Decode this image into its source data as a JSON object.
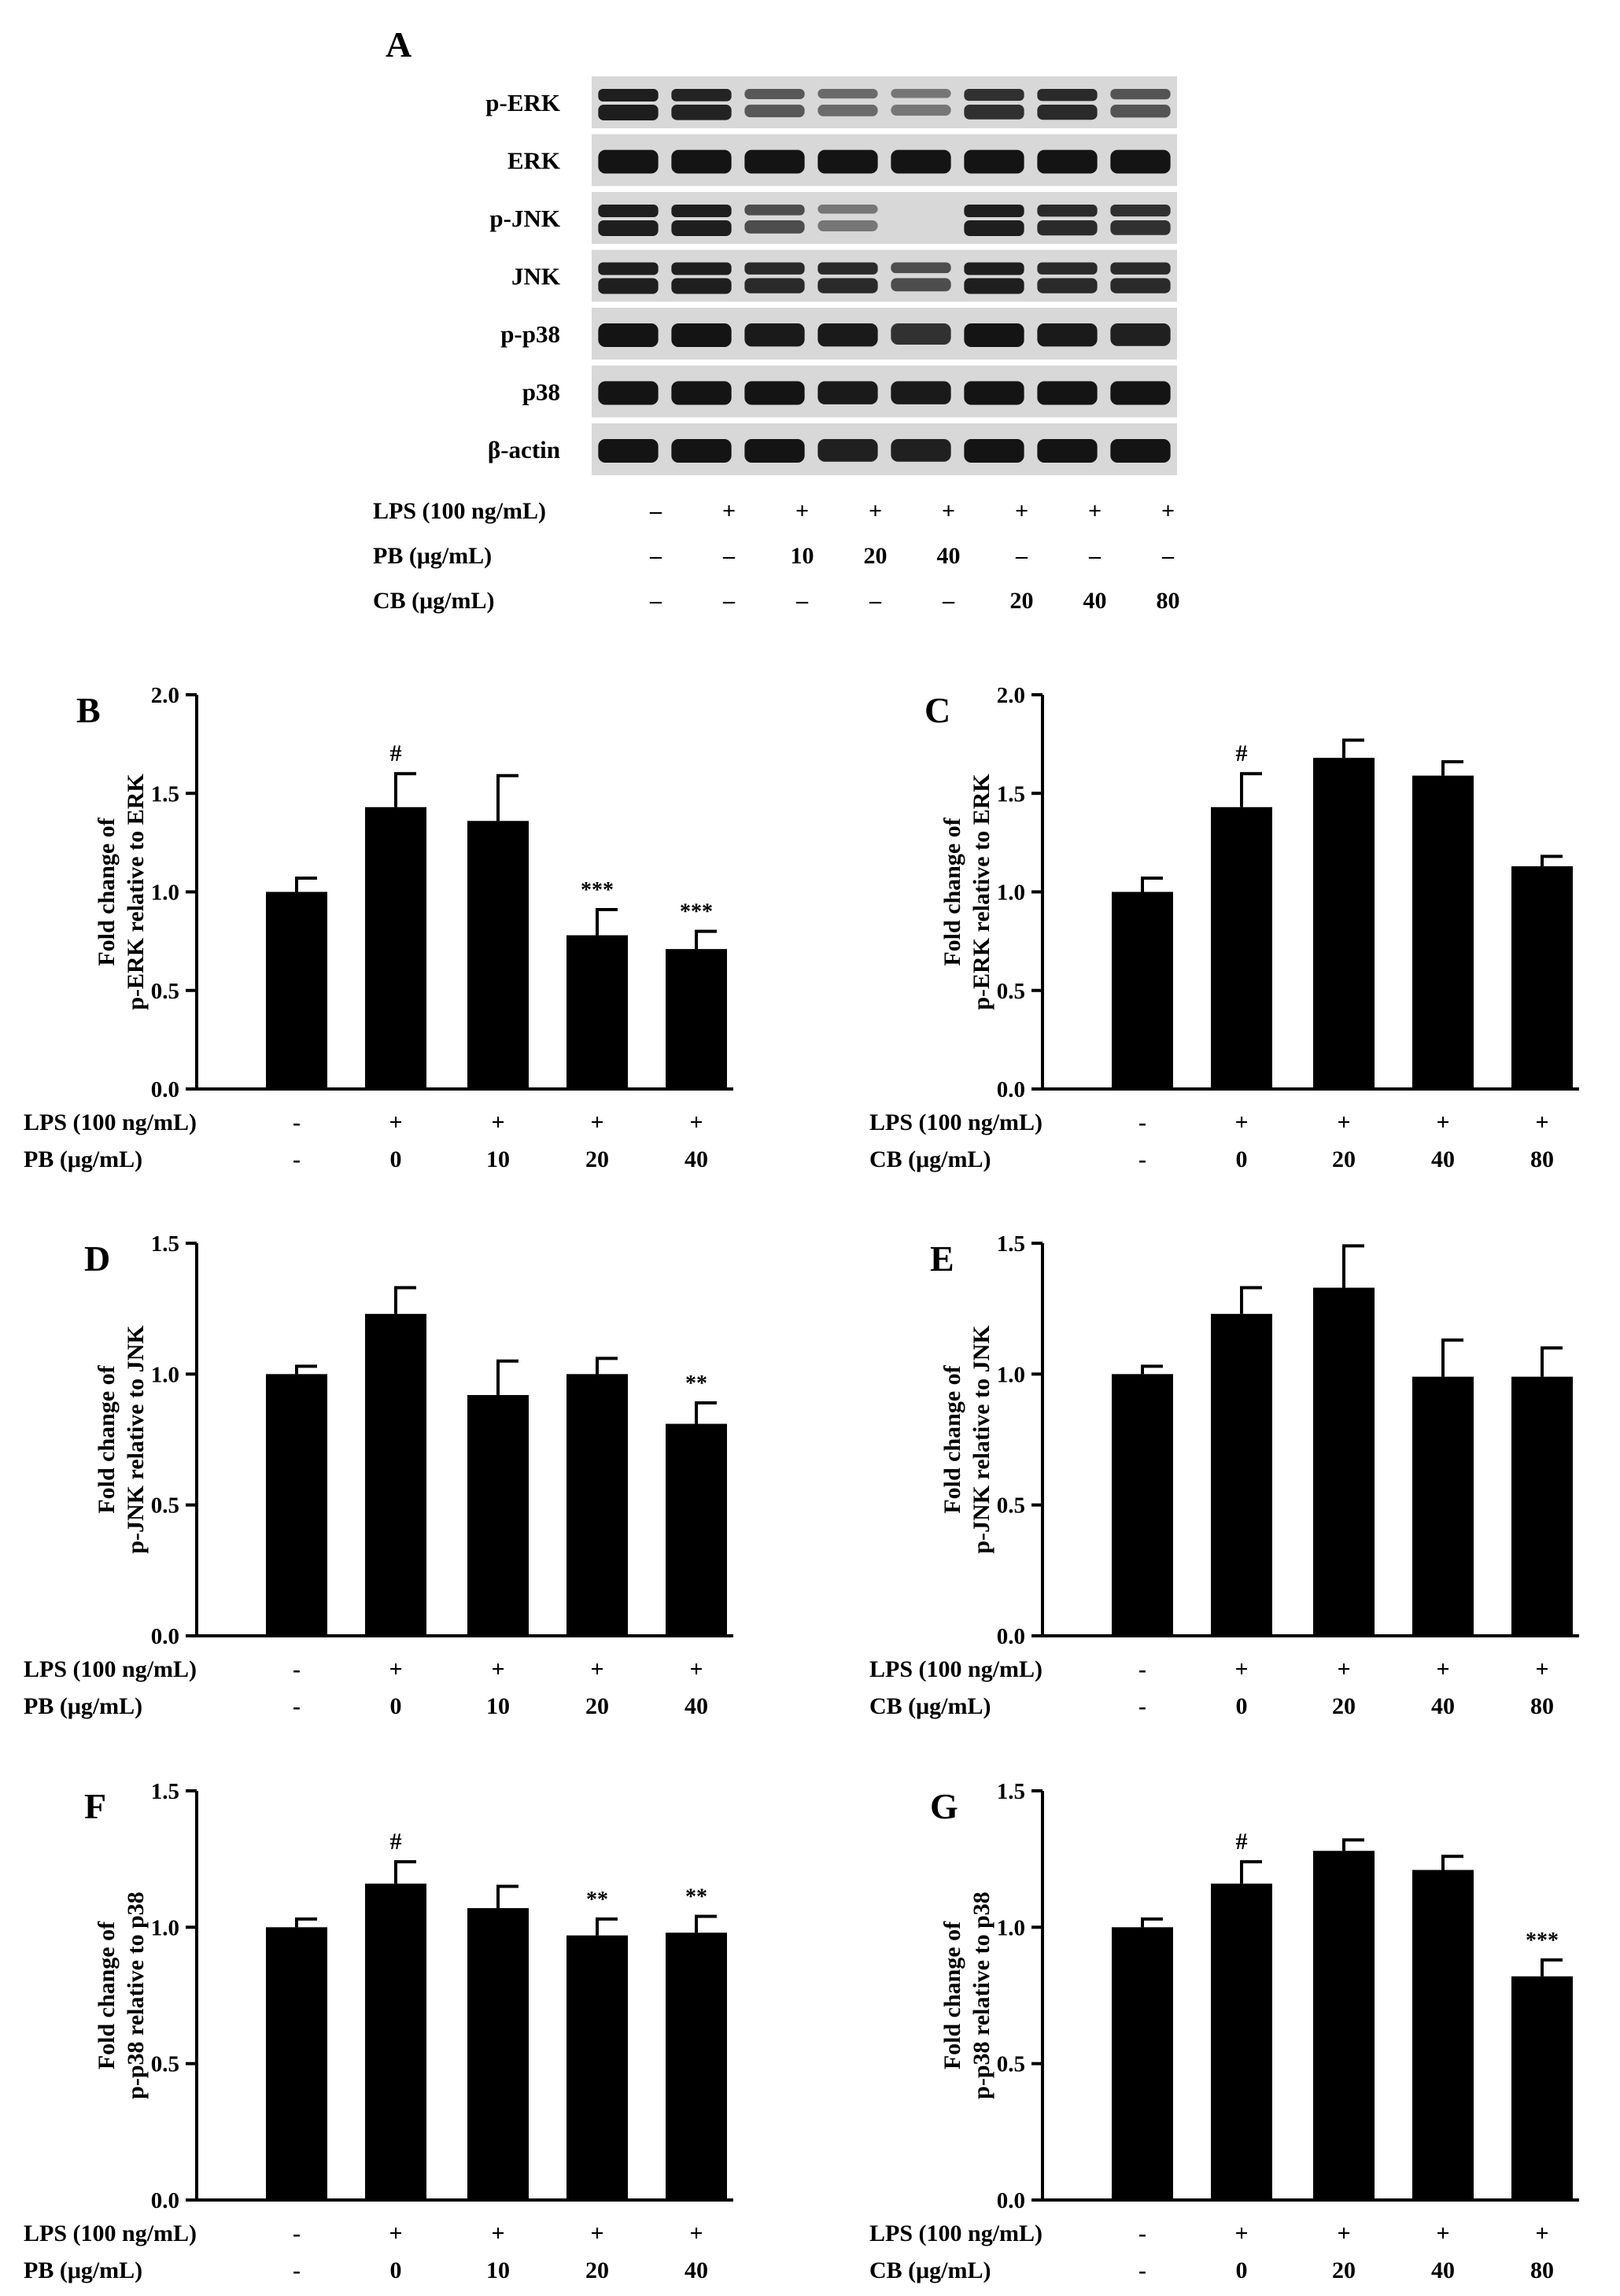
{
  "blot": {
    "panel": "A",
    "rows": [
      "p-ERK",
      "ERK",
      "p-JNK",
      "JNK",
      "p-p38",
      "p38",
      "β-actin"
    ],
    "treatments": [
      {
        "label": "LPS (100 ng/mL)",
        "values": [
          "–",
          "+",
          "+",
          "+",
          "+",
          "+",
          "+",
          "+"
        ]
      },
      {
        "label": "PB (μg/mL)",
        "values": [
          "–",
          "–",
          "10",
          "20",
          "40",
          "–",
          "–",
          "–"
        ]
      },
      {
        "label": "CB (μg/mL)",
        "values": [
          "–",
          "–",
          "–",
          "–",
          "–",
          "20",
          "40",
          "80"
        ]
      }
    ],
    "band_intensity": {
      "p-ERK": [
        1.0,
        0.95,
        0.5,
        0.35,
        0.25,
        0.85,
        0.9,
        0.55
      ],
      "ERK": [
        1,
        1,
        1,
        1,
        1,
        1,
        1,
        1
      ],
      "p-JNK": [
        1.0,
        1.0,
        0.6,
        0.25,
        0.0,
        1.0,
        0.9,
        0.85
      ],
      "JNK": [
        1,
        1,
        0.9,
        0.9,
        0.6,
        1,
        0.9,
        0.9
      ],
      "p-p38": [
        1,
        1,
        0.95,
        0.95,
        0.75,
        1,
        0.95,
        0.9
      ],
      "p38": [
        1,
        1,
        1,
        0.95,
        0.95,
        1,
        1,
        1
      ],
      "β-actin": [
        1,
        1,
        1,
        0.9,
        0.9,
        1,
        1,
        1
      ]
    },
    "colors": {
      "membrane": "#d8d8d8",
      "band": "#141414"
    }
  },
  "chart_data": [
    {
      "panel": "B",
      "type": "bar",
      "ylabel_line1": "Fold change of",
      "ylabel_line2": "p-ERK relative to ERK",
      "ylim": [
        0,
        2.0
      ],
      "yticks": [
        "0.0",
        "0.5",
        "1.0",
        "1.5",
        "2.0"
      ],
      "values": [
        1.0,
        1.43,
        1.36,
        0.78,
        0.71
      ],
      "errors": [
        0.07,
        0.17,
        0.23,
        0.13,
        0.09
      ],
      "annotations": [
        "",
        "#",
        "",
        "***",
        "***"
      ],
      "treatment_rows": [
        {
          "label": "LPS (100 ng/mL)",
          "values": [
            "-",
            "+",
            "+",
            "+",
            "+"
          ]
        },
        {
          "label": "PB (μg/mL)",
          "values": [
            "-",
            "0",
            "10",
            "20",
            "40"
          ]
        }
      ]
    },
    {
      "panel": "C",
      "type": "bar",
      "ylabel_line1": "Fold change of",
      "ylabel_line2": "p-ERK relative to ERK",
      "ylim": [
        0,
        2.0
      ],
      "yticks": [
        "0.0",
        "0.5",
        "1.0",
        "1.5",
        "2.0"
      ],
      "values": [
        1.0,
        1.43,
        1.68,
        1.59,
        1.13
      ],
      "errors": [
        0.07,
        0.17,
        0.09,
        0.07,
        0.05
      ],
      "annotations": [
        "",
        "#",
        "",
        "",
        ""
      ],
      "treatment_rows": [
        {
          "label": "LPS (100 ng/mL)",
          "values": [
            "-",
            "+",
            "+",
            "+",
            "+"
          ]
        },
        {
          "label": "CB (μg/mL)",
          "values": [
            "-",
            "0",
            "20",
            "40",
            "80"
          ]
        }
      ]
    },
    {
      "panel": "D",
      "type": "bar",
      "ylabel_line1": "Fold change of",
      "ylabel_line2": "p-JNK relative to JNK",
      "ylim": [
        0,
        1.5
      ],
      "yticks": [
        "0.0",
        "0.5",
        "1.0",
        "1.5"
      ],
      "values": [
        1.0,
        1.23,
        0.92,
        1.0,
        0.81
      ],
      "errors": [
        0.03,
        0.1,
        0.13,
        0.06,
        0.08
      ],
      "annotations": [
        "",
        "",
        "",
        "",
        "**"
      ],
      "treatment_rows": [
        {
          "label": "LPS (100 ng/mL)",
          "values": [
            "-",
            "+",
            "+",
            "+",
            "+"
          ]
        },
        {
          "label": "PB (μg/mL)",
          "values": [
            "-",
            "0",
            "10",
            "20",
            "40"
          ]
        }
      ]
    },
    {
      "panel": "E",
      "type": "bar",
      "ylabel_line1": "Fold change of",
      "ylabel_line2": "p-JNK relative to JNK",
      "ylim": [
        0,
        1.5
      ],
      "yticks": [
        "0.0",
        "0.5",
        "1.0",
        "1.5"
      ],
      "values": [
        1.0,
        1.23,
        1.33,
        0.99,
        0.99
      ],
      "errors": [
        0.03,
        0.1,
        0.16,
        0.14,
        0.11
      ],
      "annotations": [
        "",
        "",
        "",
        "",
        ""
      ],
      "treatment_rows": [
        {
          "label": "LPS (100 ng/mL)",
          "values": [
            "-",
            "+",
            "+",
            "+",
            "+"
          ]
        },
        {
          "label": "CB (μg/mL)",
          "values": [
            "-",
            "0",
            "20",
            "40",
            "80"
          ]
        }
      ]
    },
    {
      "panel": "F",
      "type": "bar",
      "ylabel_line1": "Fold change of",
      "ylabel_line2": "p-p38 relative to p38",
      "ylim": [
        0,
        1.5
      ],
      "yticks": [
        "0.0",
        "0.5",
        "1.0",
        "1.5"
      ],
      "values": [
        1.0,
        1.16,
        1.07,
        0.97,
        0.98
      ],
      "errors": [
        0.03,
        0.08,
        0.08,
        0.06,
        0.06
      ],
      "annotations": [
        "",
        "#",
        "",
        "**",
        "**"
      ],
      "treatment_rows": [
        {
          "label": "LPS (100 ng/mL)",
          "values": [
            "-",
            "+",
            "+",
            "+",
            "+"
          ]
        },
        {
          "label": "PB (μg/mL)",
          "values": [
            "-",
            "0",
            "10",
            "20",
            "40"
          ]
        }
      ]
    },
    {
      "panel": "G",
      "type": "bar",
      "ylabel_line1": "Fold change of",
      "ylabel_line2": "p-p38 relative to p38",
      "ylim": [
        0,
        1.5
      ],
      "yticks": [
        "0.0",
        "0.5",
        "1.0",
        "1.5"
      ],
      "values": [
        1.0,
        1.16,
        1.28,
        1.21,
        0.82
      ],
      "errors": [
        0.03,
        0.08,
        0.04,
        0.05,
        0.06
      ],
      "annotations": [
        "",
        "#",
        "",
        "",
        "***"
      ],
      "treatment_rows": [
        {
          "label": "LPS (100 ng/mL)",
          "values": [
            "-",
            "+",
            "+",
            "+",
            "+"
          ]
        },
        {
          "label": "CB (μg/mL)",
          "values": [
            "-",
            "0",
            "20",
            "40",
            "80"
          ]
        }
      ]
    }
  ]
}
